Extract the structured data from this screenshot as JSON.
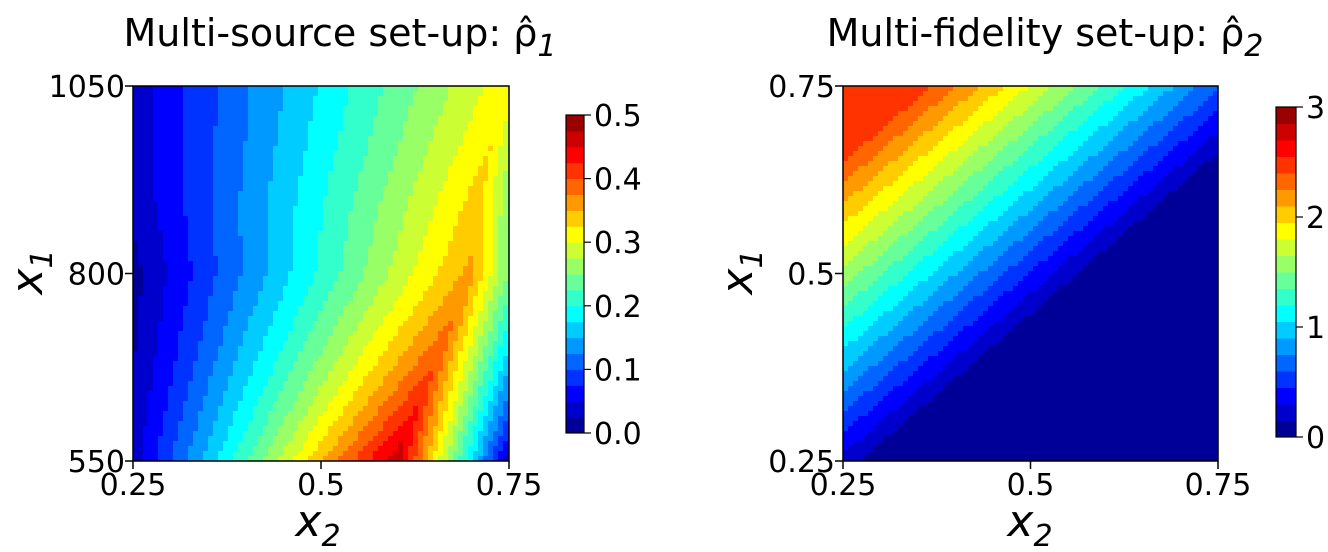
{
  "chart_data": [
    {
      "type": "contour",
      "title_main": "Multi-source set-up: ",
      "title_symbol": "ρ̂",
      "title_sub": "1",
      "xlabel": "x",
      "xlabel_sub": "2",
      "ylabel": "x",
      "ylabel_sub": "1",
      "xlim": [
        0.25,
        0.75
      ],
      "ylim": [
        550,
        1050
      ],
      "xticks": [
        0.25,
        0.5,
        0.75
      ],
      "xtick_labels": [
        "0.25",
        "0.5",
        "0.75"
      ],
      "yticks": [
        550,
        800,
        1050
      ],
      "ytick_labels": [
        "550",
        "800",
        "1050"
      ],
      "colormap": "jet",
      "levels": 20,
      "colorbar": {
        "min": 0.0,
        "max": 0.5,
        "ticks": [
          0.0,
          0.1,
          0.2,
          0.3,
          0.4,
          0.5
        ],
        "tick_labels": [
          "0.0",
          "0.1",
          "0.2",
          "0.3",
          "0.4",
          "0.5"
        ]
      },
      "ridge": [
        [
          550,
          0.6
        ],
        [
          650,
          0.64
        ],
        [
          800,
          0.7
        ],
        [
          900,
          0.71
        ],
        [
          1050,
          0.745
        ]
      ],
      "value_min": 0.0,
      "value_max": 0.475,
      "peak": {
        "x": 0.6,
        "y": 560,
        "value": 0.47
      }
    },
    {
      "type": "contour",
      "title_main": "Multi-fidelity set-up: ",
      "title_symbol": "ρ̂",
      "title_sub": "2",
      "xlabel": "x",
      "xlabel_sub": "2",
      "ylabel": "x",
      "ylabel_sub": "1",
      "xlim": [
        0.25,
        0.75
      ],
      "ylim": [
        0.25,
        0.75
      ],
      "xticks": [
        0.25,
        0.5,
        0.75
      ],
      "xtick_labels": [
        "0.25",
        "0.5",
        "0.75"
      ],
      "yticks": [
        0.25,
        0.5,
        0.75
      ],
      "ytick_labels": [
        "0.25",
        "0.5",
        "0.75"
      ],
      "colormap": "jet",
      "levels": 20,
      "colorbar": {
        "min": 0,
        "max": 3,
        "ticks": [
          0,
          1,
          2,
          3
        ],
        "tick_labels": [
          "0",
          "1",
          "2",
          "3"
        ]
      },
      "value_min": 0.0,
      "value_max": 2.45
    }
  ]
}
